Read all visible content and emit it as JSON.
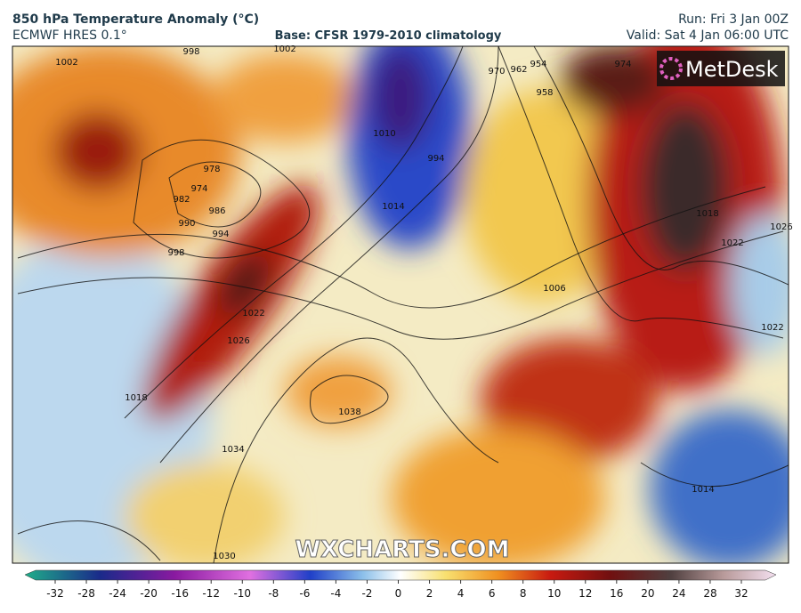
{
  "header": {
    "title": "850 hPa Temperature Anomaly (°C)",
    "model": "ECMWF HRES 0.1°",
    "base": "Base: CFSR 1979-2010 climatology",
    "run": "Run: Fri 3 Jan 00Z",
    "valid": "Valid: Sat 4 Jan 06:00 UTC"
  },
  "logo": "MetDesk",
  "watermark": "WXCHARTS.COM",
  "isobar_labels": [
    1002,
    998,
    1002,
    978,
    974,
    982,
    986,
    990,
    994,
    998,
    1022,
    1026,
    1018,
    1034,
    1030,
    1038,
    970,
    962,
    954,
    958,
    974,
    1010,
    1014,
    994,
    1006,
    1018,
    1022,
    1026,
    1022,
    1014
  ],
  "colorbar": {
    "ticks": [
      -32,
      -28,
      -24,
      -20,
      -16,
      -12,
      -10,
      -8,
      -6,
      -4,
      -2,
      0,
      2,
      4,
      6,
      8,
      10,
      12,
      16,
      20,
      24,
      28,
      32
    ]
  }
}
